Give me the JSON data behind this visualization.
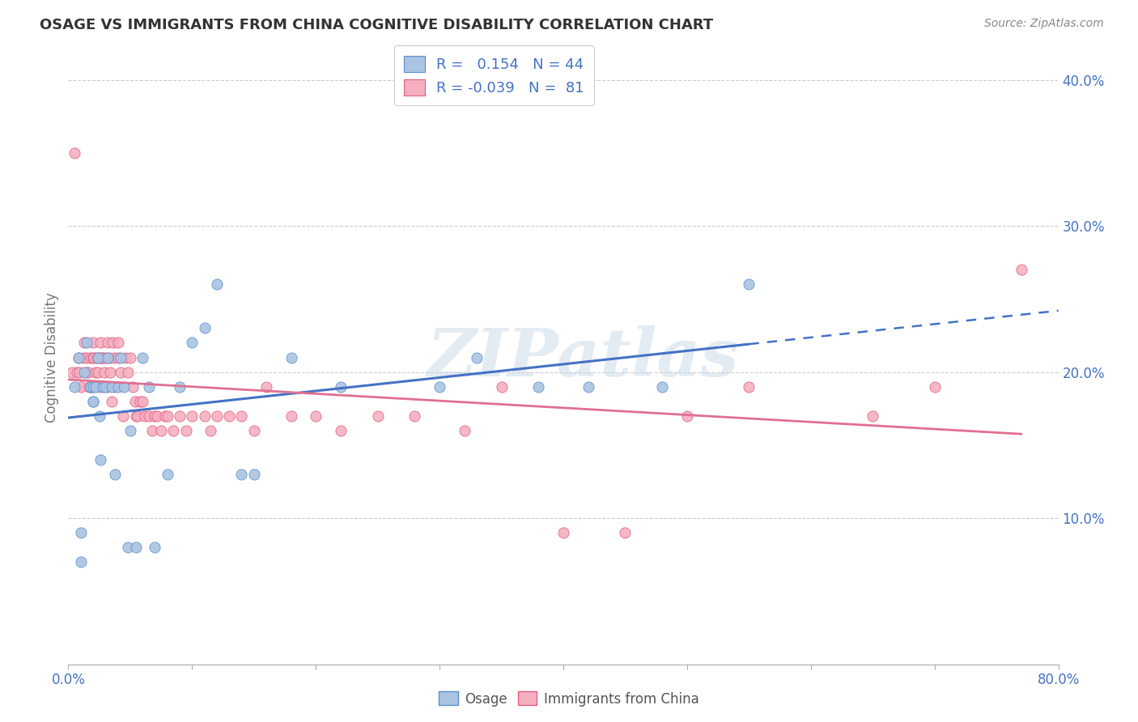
{
  "title": "OSAGE VS IMMIGRANTS FROM CHINA COGNITIVE DISABILITY CORRELATION CHART",
  "source": "Source: ZipAtlas.com",
  "xlim": [
    0.0,
    0.8
  ],
  "ylim": [
    0.0,
    0.42
  ],
  "yticks": [
    0.1,
    0.2,
    0.3,
    0.4
  ],
  "ytick_labels": [
    "10.0%",
    "20.0%",
    "30.0%",
    "40.0%"
  ],
  "xtick_labels_shown": [
    "0.0%",
    "80.0%"
  ],
  "xtick_positions_shown": [
    0.0,
    0.8
  ],
  "legend_R1": "0.154",
  "legend_N1": "44",
  "legend_R2": "-0.039",
  "legend_N2": "81",
  "color_osage_fill": "#aac4e2",
  "color_osage_edge": "#5b8fcc",
  "color_china_fill": "#f5afc0",
  "color_china_edge": "#e06080",
  "color_line_osage": "#4472c4",
  "color_line_china": "#e07090",
  "color_axis_text": "#4472c4",
  "color_ylabel": "#777777",
  "color_title": "#333333",
  "color_source": "#888888",
  "background": "#ffffff",
  "watermark": "ZIPatlas",
  "grid_color": "#cccccc",
  "osage_x": [
    0.005,
    0.008,
    0.01,
    0.01,
    0.013,
    0.015,
    0.018,
    0.018,
    0.02,
    0.02,
    0.02,
    0.022,
    0.024,
    0.025,
    0.026,
    0.028,
    0.03,
    0.032,
    0.035,
    0.038,
    0.04,
    0.042,
    0.045,
    0.048,
    0.05,
    0.055,
    0.06,
    0.065,
    0.07,
    0.08,
    0.09,
    0.1,
    0.11,
    0.12,
    0.14,
    0.15,
    0.18,
    0.22,
    0.3,
    0.33,
    0.38,
    0.42,
    0.48,
    0.55
  ],
  "osage_y": [
    0.19,
    0.21,
    0.09,
    0.07,
    0.2,
    0.22,
    0.19,
    0.19,
    0.19,
    0.18,
    0.18,
    0.19,
    0.21,
    0.17,
    0.14,
    0.19,
    0.19,
    0.21,
    0.19,
    0.13,
    0.19,
    0.21,
    0.19,
    0.08,
    0.16,
    0.08,
    0.21,
    0.19,
    0.08,
    0.13,
    0.19,
    0.22,
    0.23,
    0.26,
    0.13,
    0.13,
    0.21,
    0.19,
    0.19,
    0.21,
    0.19,
    0.19,
    0.19,
    0.26
  ],
  "china_x": [
    0.003,
    0.005,
    0.007,
    0.008,
    0.009,
    0.01,
    0.012,
    0.013,
    0.015,
    0.015,
    0.016,
    0.017,
    0.018,
    0.019,
    0.02,
    0.02,
    0.021,
    0.022,
    0.023,
    0.024,
    0.025,
    0.025,
    0.026,
    0.027,
    0.028,
    0.029,
    0.03,
    0.031,
    0.032,
    0.033,
    0.034,
    0.035,
    0.036,
    0.037,
    0.038,
    0.04,
    0.04,
    0.042,
    0.044,
    0.046,
    0.048,
    0.05,
    0.052,
    0.054,
    0.055,
    0.056,
    0.058,
    0.06,
    0.062,
    0.065,
    0.068,
    0.07,
    0.072,
    0.075,
    0.078,
    0.08,
    0.085,
    0.09,
    0.095,
    0.1,
    0.11,
    0.115,
    0.12,
    0.13,
    0.14,
    0.15,
    0.16,
    0.18,
    0.2,
    0.22,
    0.25,
    0.28,
    0.32,
    0.35,
    0.4,
    0.45,
    0.5,
    0.55,
    0.65,
    0.7,
    0.77
  ],
  "china_y": [
    0.2,
    0.35,
    0.2,
    0.21,
    0.2,
    0.19,
    0.21,
    0.22,
    0.21,
    0.2,
    0.2,
    0.19,
    0.21,
    0.19,
    0.22,
    0.21,
    0.21,
    0.2,
    0.21,
    0.2,
    0.21,
    0.19,
    0.22,
    0.21,
    0.21,
    0.2,
    0.21,
    0.19,
    0.22,
    0.21,
    0.2,
    0.18,
    0.22,
    0.21,
    0.19,
    0.22,
    0.21,
    0.2,
    0.17,
    0.21,
    0.2,
    0.21,
    0.19,
    0.18,
    0.17,
    0.17,
    0.18,
    0.18,
    0.17,
    0.17,
    0.16,
    0.17,
    0.17,
    0.16,
    0.17,
    0.17,
    0.16,
    0.17,
    0.16,
    0.17,
    0.17,
    0.16,
    0.17,
    0.17,
    0.17,
    0.16,
    0.19,
    0.17,
    0.17,
    0.16,
    0.17,
    0.17,
    0.16,
    0.19,
    0.09,
    0.09,
    0.17,
    0.19,
    0.17,
    0.19,
    0.27
  ]
}
